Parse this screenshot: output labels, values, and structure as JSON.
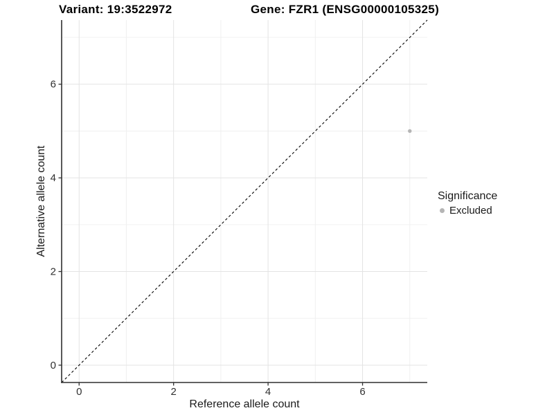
{
  "chart_data": {
    "type": "scatter",
    "title_left": "Variant: 19:3522972",
    "title_right": "Gene: FZR1 (ENSG00000105325)",
    "xlabel": "Reference allele count",
    "ylabel": "Alternative allele count",
    "xlim": [
      -0.37,
      7.37
    ],
    "ylim": [
      -0.37,
      7.37
    ],
    "x_major_ticks": [
      0,
      2,
      4,
      6
    ],
    "x_minor_ticks": [
      1,
      3,
      5,
      7
    ],
    "y_major_ticks": [
      0,
      2,
      4,
      6
    ],
    "y_minor_ticks": [
      1,
      3,
      5,
      7
    ],
    "grid": true,
    "legend_position": "right",
    "reference_line": {
      "kind": "identity",
      "equation": "y = x",
      "style": "dashed",
      "color": "#000000"
    },
    "series": [
      {
        "name": "Excluded",
        "color": "#b5b5b5",
        "points": [
          {
            "x": 7,
            "y": 5
          }
        ]
      }
    ],
    "legend": {
      "title": "Significance",
      "items": [
        {
          "label": "Excluded",
          "color": "#b5b5b5"
        }
      ]
    },
    "colors": {
      "point": "#b5b5b5",
      "grid_major": "#e3e3e3",
      "grid_minor": "#f0f0f0",
      "axis_line": "#2f2f2f",
      "tick_label": "#303030",
      "text": "#1a1a1a"
    }
  }
}
